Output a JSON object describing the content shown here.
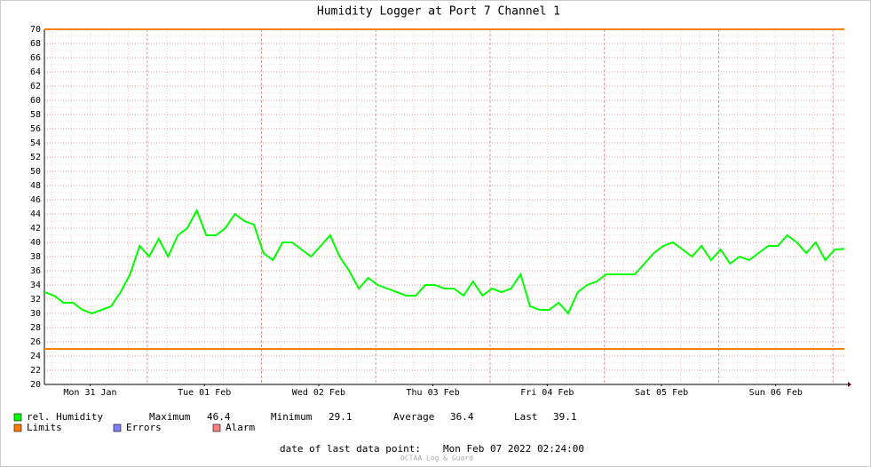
{
  "chart_data": {
    "type": "line",
    "title": "Humidity Logger at Port 7 Channel 1",
    "xlim": [
      "2022-01-31T02:24",
      "2022-02-07T02:24"
    ],
    "xticks": [
      {
        "value": "2022-01-31T12:00",
        "label": "Mon 31 Jan"
      },
      {
        "value": "2022-02-01T12:00",
        "label": "Tue 01 Feb"
      },
      {
        "value": "2022-02-02T12:00",
        "label": "Wed 02 Feb"
      },
      {
        "value": "2022-02-03T12:00",
        "label": "Thu 03 Feb"
      },
      {
        "value": "2022-02-04T12:00",
        "label": "Fri 04 Feb"
      },
      {
        "value": "2022-02-05T12:00",
        "label": "Sat 05 Feb"
      },
      {
        "value": "2022-02-06T12:00",
        "label": "Sun 06 Feb"
      }
    ],
    "ylim": [
      20,
      70
    ],
    "yticks": [
      20,
      22,
      24,
      26,
      28,
      30,
      32,
      34,
      36,
      38,
      40,
      42,
      44,
      46,
      48,
      50,
      52,
      54,
      56,
      58,
      60,
      62,
      64,
      66,
      68,
      70
    ],
    "grid": true,
    "series": [
      {
        "name": "rel. Humidity",
        "color": "#00ff00",
        "values": [
          33,
          32.5,
          31.5,
          31.5,
          30.5,
          30,
          30.5,
          31,
          33,
          35.5,
          39.5,
          38,
          40.5,
          38,
          41,
          42,
          44.5,
          41,
          41,
          42,
          44,
          43,
          42.5,
          38.5,
          37.5,
          40,
          40,
          39,
          38,
          39.5,
          41,
          38,
          36,
          33.5,
          35,
          34,
          33.5,
          33,
          32.5,
          32.5,
          34,
          34,
          33.5,
          33.5,
          32.5,
          34.5,
          32.5,
          33.5,
          33,
          33.5,
          35.5,
          31,
          30.5,
          30.5,
          31.5,
          30,
          33,
          34,
          34.5,
          35.5,
          35.5,
          35.5,
          35.5,
          37,
          38.5,
          39.5,
          40,
          39,
          38,
          39.5,
          37.5,
          39,
          37,
          38,
          37.5,
          38.5,
          39.5,
          39.5,
          41,
          40,
          38.5,
          40,
          37.5,
          39,
          39.1
        ]
      }
    ],
    "limits": {
      "name": "Limits",
      "color": "#ff8000",
      "values": [
        70,
        25
      ]
    },
    "errors": {
      "name": "Errors",
      "color": "#8080ff"
    },
    "alarm": {
      "name": "Alarm",
      "color": "#ff8080"
    },
    "stats": [
      {
        "label": "Maximum",
        "value": 46.4
      },
      {
        "label": "Minimum",
        "value": 29.1
      },
      {
        "label": "Average",
        "value": 36.4
      },
      {
        "label": "Last",
        "value": 39.1
      }
    ],
    "last_point_label": "date of last data point:",
    "last_point": "Mon Feb 07 2022 02:24:00",
    "footer": "OCTAA Log & Guard"
  }
}
